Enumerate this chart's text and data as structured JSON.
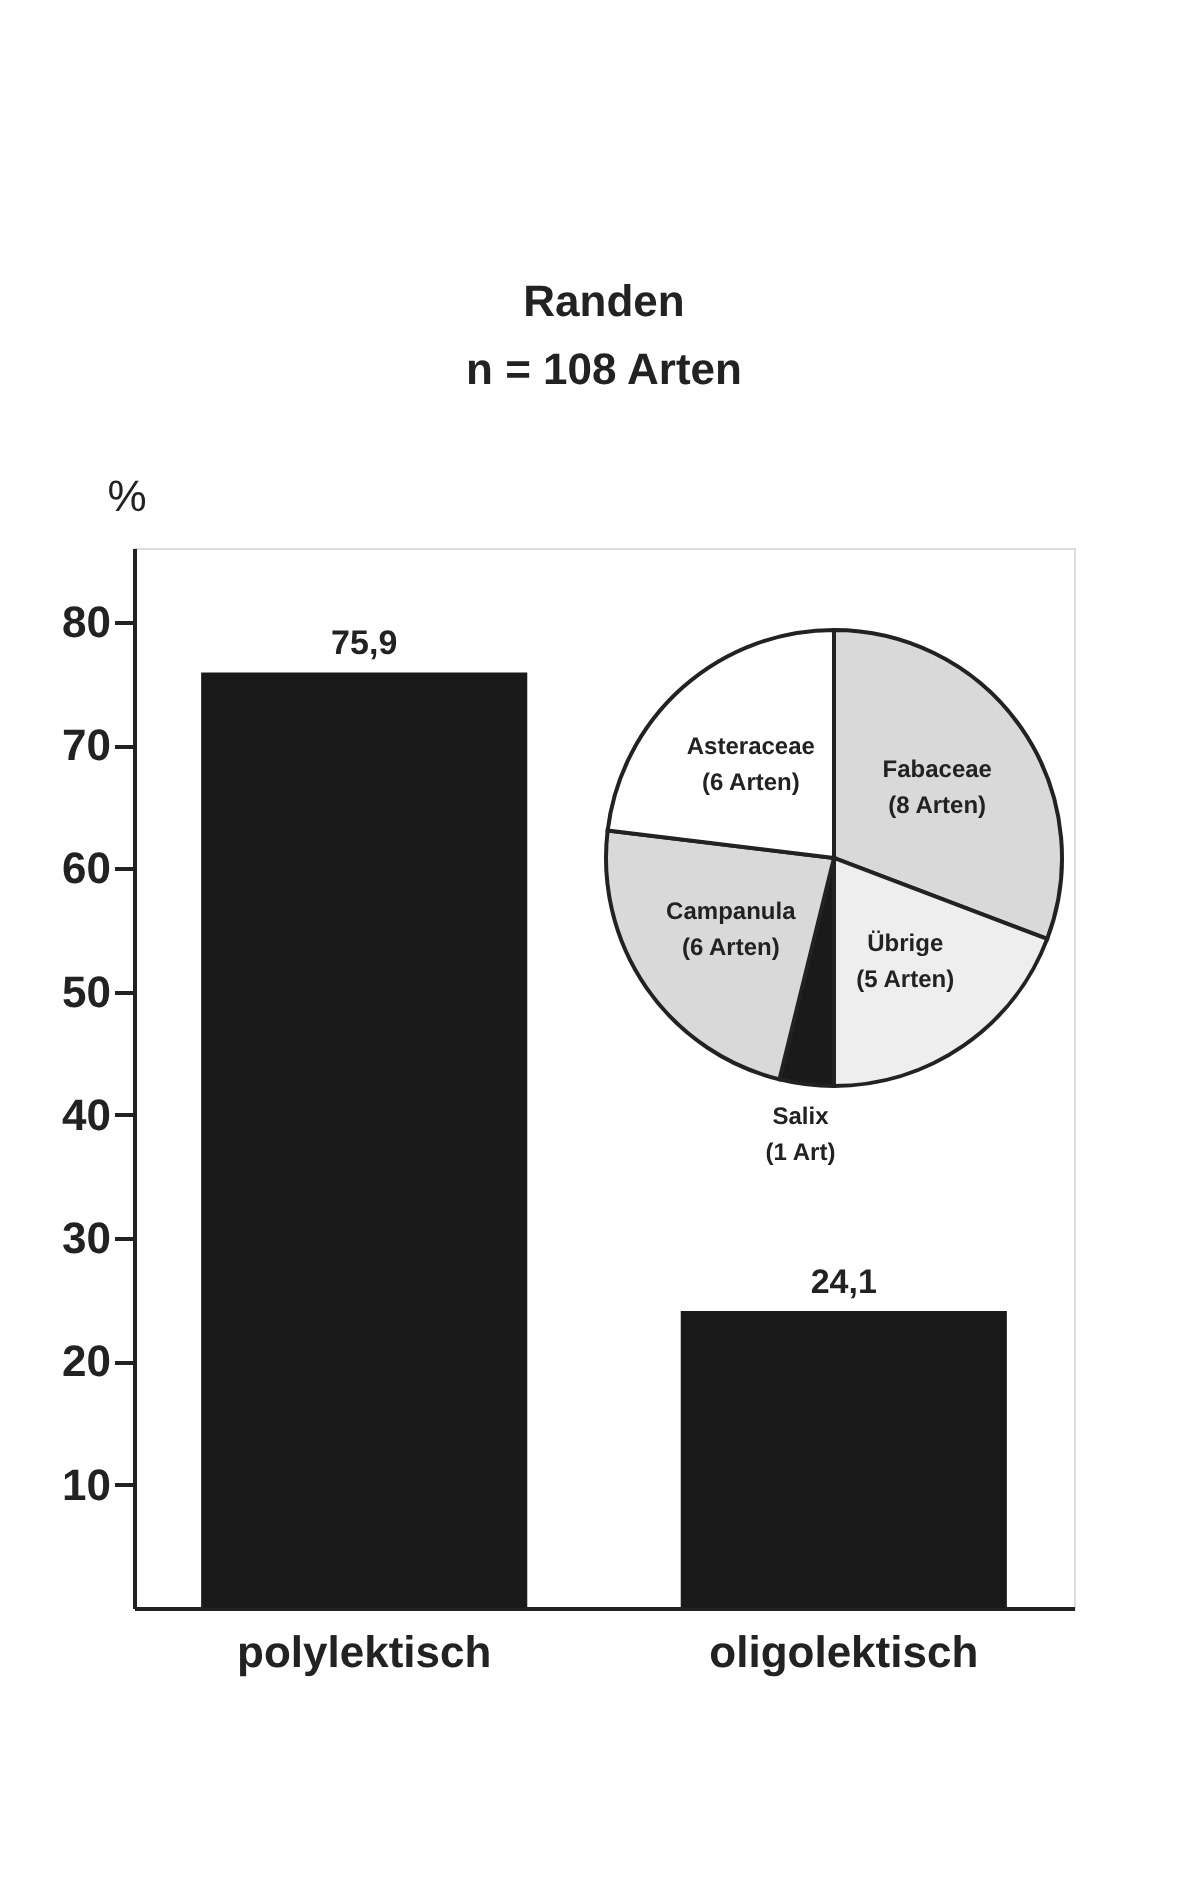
{
  "chart_data": [
    {
      "type": "bar",
      "title": "Randen",
      "subtitle": "n = 108 Arten",
      "ylabel": "%",
      "categories": [
        "polylektisch",
        "oligolektisch"
      ],
      "values": [
        75.9,
        24.1
      ],
      "value_labels": [
        "75,9",
        "24,1"
      ],
      "color": "#1a1a1a",
      "ylim": [
        0,
        86
      ],
      "yticks": [
        10,
        20,
        30,
        40,
        50,
        60,
        70,
        80
      ],
      "grid": false,
      "legend": false
    },
    {
      "type": "pie",
      "categories": [
        "Fabaceae",
        "Übrige",
        "Salix",
        "Campanula",
        "Asteraceae"
      ],
      "values": [
        8,
        5,
        1,
        6,
        6
      ],
      "value_labels": [
        "(8 Arten)",
        "(5 Arten)",
        "(1 Art)",
        "(6 Arten)",
        "(6 Arten)"
      ],
      "colors": [
        "#d9d9d9",
        "#eeeeee",
        "#1a1a1a",
        "#d9d9d9",
        "#ffffff"
      ],
      "legend": false
    }
  ]
}
